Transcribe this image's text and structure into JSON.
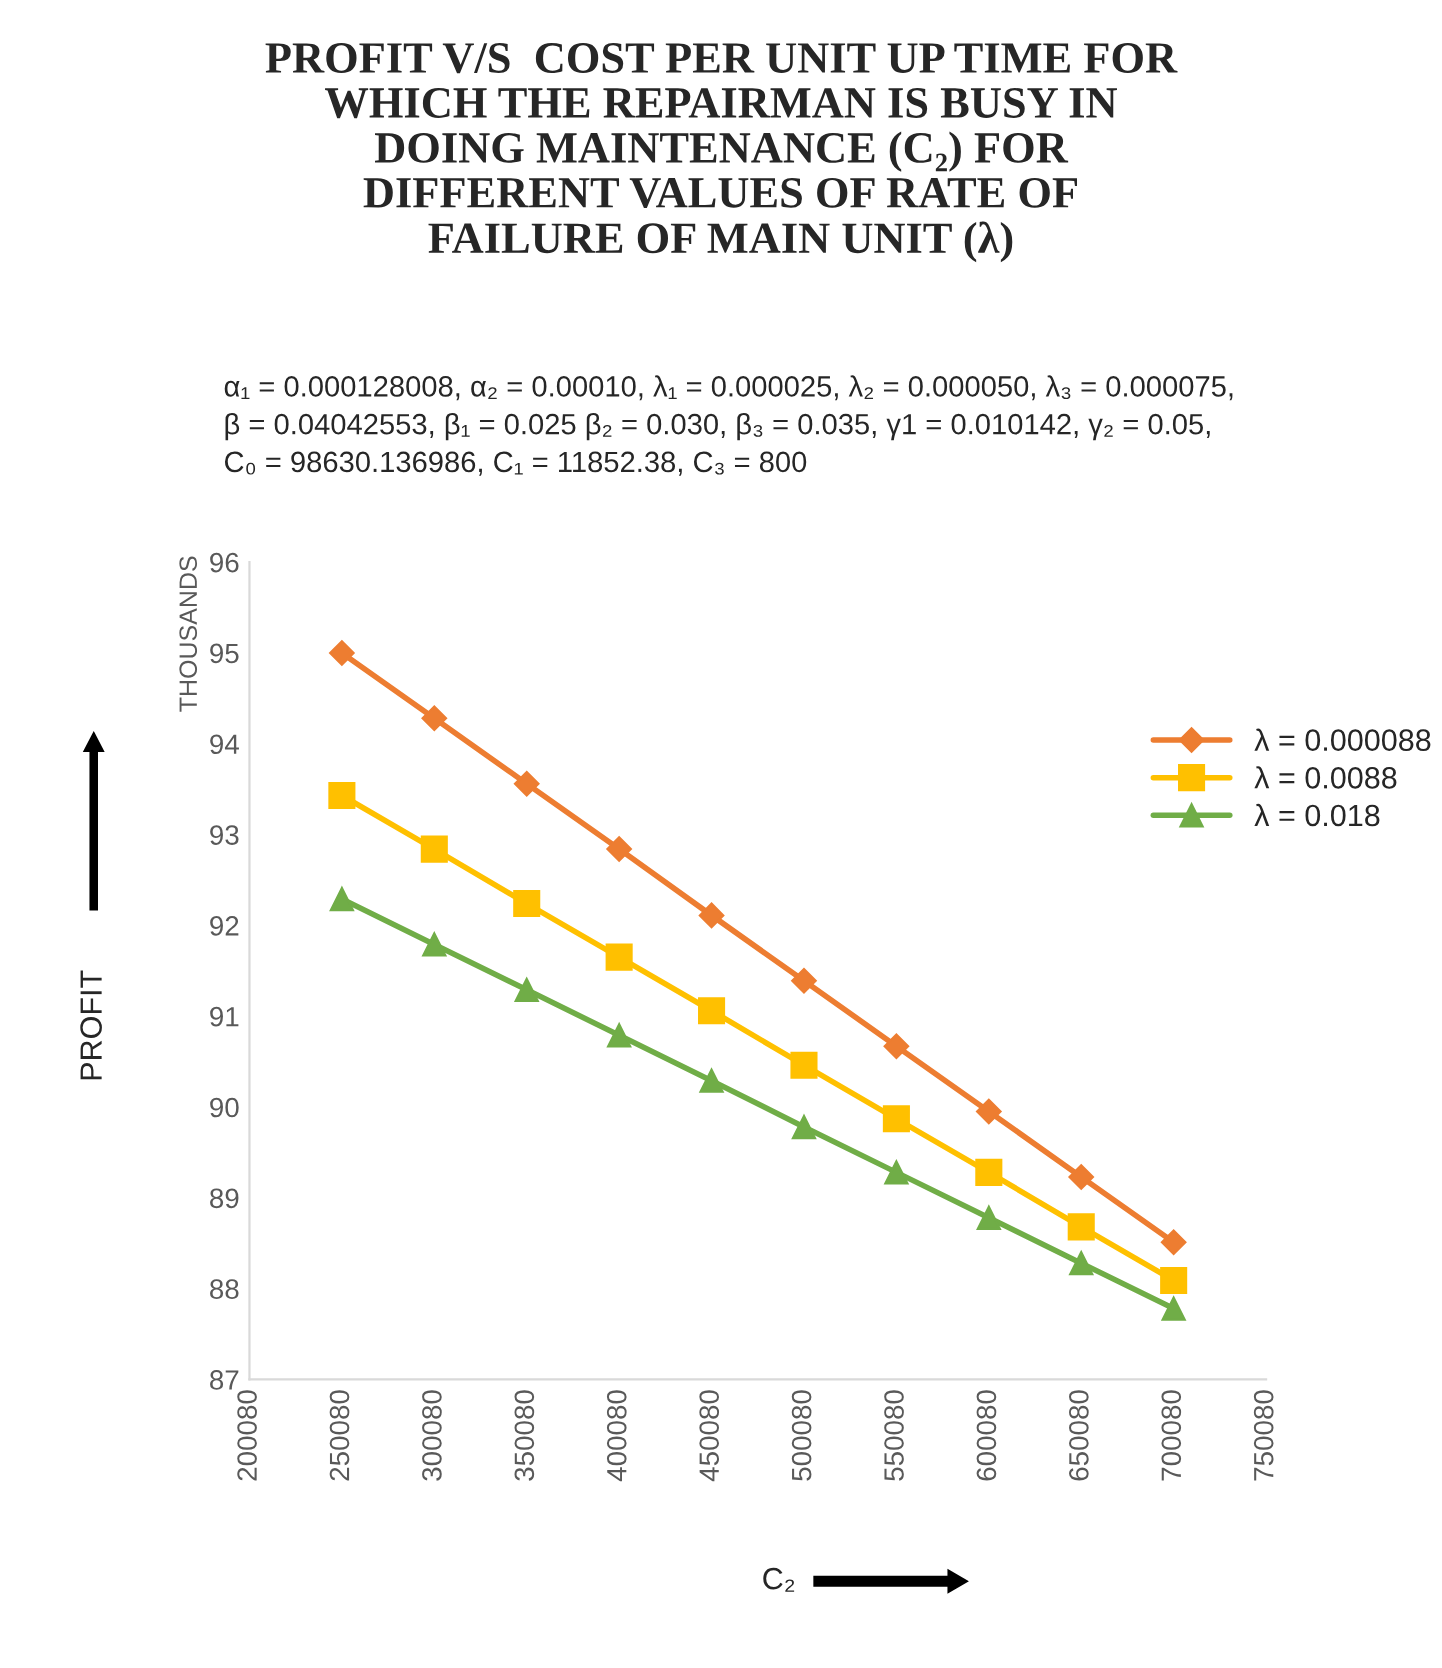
{
  "chart_data": {
    "type": "line",
    "title": "PROFIT V/S  COST PER UNIT UP TIME FOR\nWHICH THE REPAIRMAN IS BUSY IN\nDOING MAINTENANCE (C₂) FOR\nDIFFERENT VALUES OF RATE OF\nFAILURE OF MAIN UNIT (λ)",
    "subtitle": "α₁ = 0.000128008, α₂ = 0.00010, λ₁ = 0.000025, λ₂ = 0.000050, λ₃ = 0.000075,\nβ = 0.04042553, β₁ = 0.025 β₂ = 0.030, β₃ = 0.035, γ1 = 0.010142, γ₂ = 0.05,\nC₀ = 98630.136986, C₁ = 11852.38, C₃ = 800",
    "xlabel": "C₂",
    "ylabel": "PROFIT",
    "annotations": [
      "THOUSANDS"
    ],
    "x": [
      250080,
      300080,
      350080,
      400080,
      450080,
      500080,
      550080,
      600080,
      650080,
      700080
    ],
    "series": [
      {
        "name": "λ = 0.000088",
        "color": "#ed7d31",
        "marker": "diamond",
        "values": [
          95.0,
          94.28,
          93.56,
          92.84,
          92.11,
          91.39,
          90.67,
          89.95,
          89.23,
          88.51
        ]
      },
      {
        "name": "λ = 0.0088",
        "color": "#ffc000",
        "marker": "square",
        "values": [
          93.43,
          92.84,
          92.24,
          91.65,
          91.06,
          90.46,
          89.87,
          89.28,
          88.68,
          88.09
        ]
      },
      {
        "name": "λ = 0.018",
        "color": "#70ad47",
        "marker": "triangle",
        "values": [
          92.29,
          91.79,
          91.29,
          90.79,
          90.29,
          89.78,
          89.28,
          88.78,
          88.28,
          87.78
        ]
      }
    ],
    "xlim": [
      200080,
      750080
    ],
    "xticks": [
      200080,
      250080,
      300080,
      350080,
      400080,
      450080,
      500080,
      550080,
      600080,
      650080,
      700080,
      750080
    ],
    "ylim": [
      87,
      96
    ],
    "yticks": [
      87,
      88,
      89,
      90,
      91,
      92,
      93,
      94,
      95,
      96
    ],
    "grid": false,
    "legend": "right",
    "line_style": "solid"
  }
}
